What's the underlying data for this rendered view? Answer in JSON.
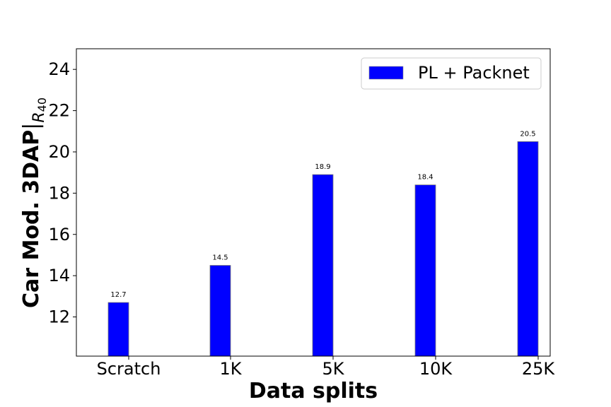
{
  "chart_data": {
    "type": "bar",
    "categories": [
      "Scratch",
      "1K",
      "5K",
      "10K",
      "25K"
    ],
    "series": [
      {
        "name": "PL + Packnet",
        "values": [
          12.7,
          14.5,
          18.9,
          18.4,
          20.5
        ],
        "color": "#0000ff"
      }
    ],
    "data_labels": [
      "12.7",
      "14.5",
      "18.9",
      "18.4",
      "20.5"
    ],
    "xlabel": "Data splits",
    "ylabel_main": "Car Mod. 3DAP",
    "ylabel_sub": "R",
    "ylabel_subsub": "40",
    "ylim": [
      10.1,
      25
    ],
    "yticks": [
      12,
      14,
      16,
      18,
      20,
      22,
      24
    ],
    "ytick_labels": [
      "12",
      "14",
      "16",
      "18",
      "20",
      "22",
      "24"
    ],
    "grid": false,
    "legend_position": "top-right"
  }
}
